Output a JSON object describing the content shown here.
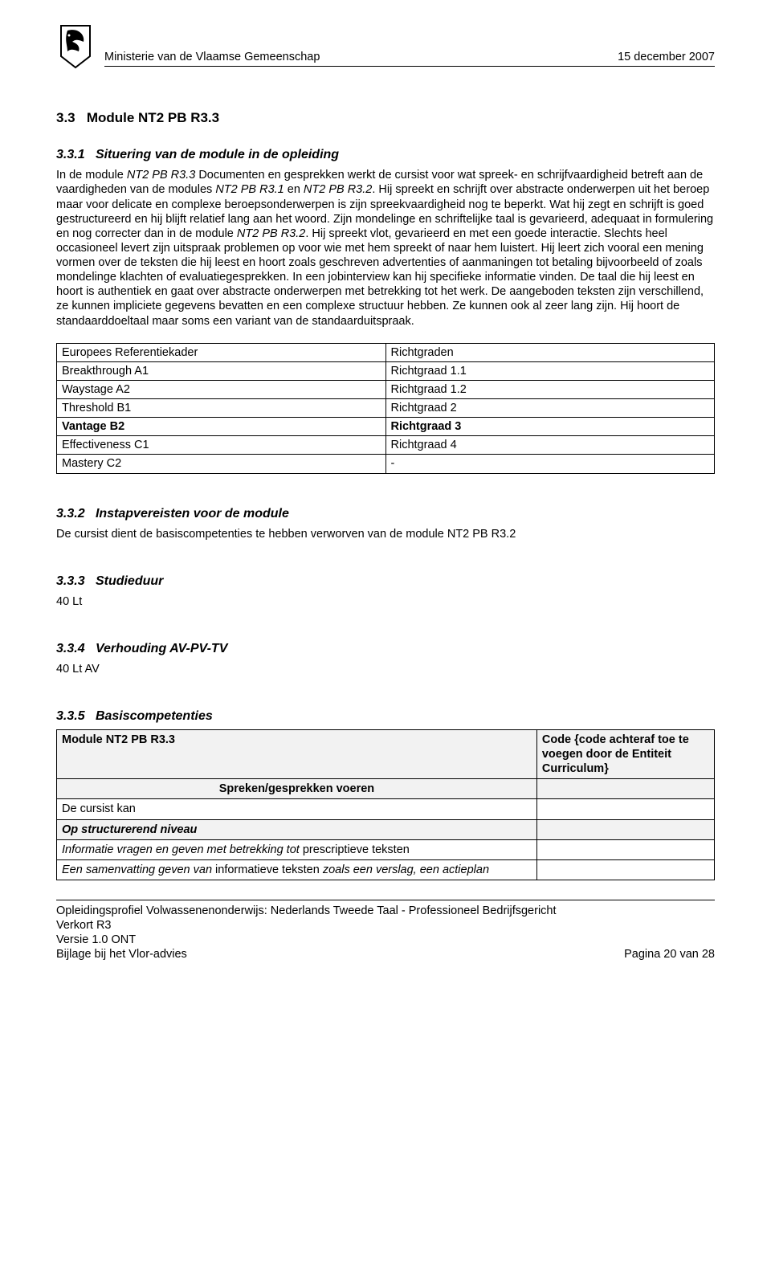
{
  "header": {
    "org": "Ministerie van de Vlaamse Gemeenschap",
    "date": "15 december 2007"
  },
  "sec33": {
    "num": "3.3",
    "title": "Module NT2 PB R3.3"
  },
  "sec331": {
    "num": "3.3.1",
    "title": "Situering van de module in de opleiding",
    "intro_prefix": "In de module ",
    "intro_i1": "NT2 PB R3.3",
    "intro_mid1": " Documenten en gesprekken werkt de cursist voor wat spreek- en schrijfvaardigheid betreft aan de vaardigheden van de modules ",
    "intro_i2": "NT2 PB R3.1",
    "intro_mid2": " en ",
    "intro_i3": "NT2 PB R3.2",
    "intro_mid3": ". Hij spreekt en schrijft over abstracte onderwerpen uit het beroep maar voor delicate en complexe beroepsonderwerpen is zijn spreekvaardigheid nog te beperkt. Wat hij zegt en schrijft is goed gestructureerd en hij blijft relatief lang aan het woord. Zijn mondelinge en schriftelijke taal is gevarieerd, adequaat in formulering en nog correcter dan in de module ",
    "intro_i4": "NT2 PB R3.2",
    "intro_tail": ". Hij spreekt vlot, gevarieerd en met een goede interactie. Slechts heel occasioneel levert zijn uitspraak problemen op voor wie met hem spreekt of naar hem luistert. Hij leert zich vooral een mening vormen over de teksten die hij leest en hoort zoals geschreven advertenties of aanmaningen tot betaling bijvoorbeeld of zoals mondelinge klachten of evaluatiegesprekken. In een jobinterview kan hij specifieke informatie vinden. De taal die hij leest en hoort is authentiek en gaat over abstracte onderwerpen met betrekking tot het werk. De aangeboden teksten zijn verschillend, ze kunnen impliciete gegevens bevatten en een complexe structuur hebben. Ze kunnen ook al zeer lang zijn. Hij hoort de standaarddoeltaal maar soms een variant van de standaarduitspraak."
  },
  "table1": {
    "rows": [
      [
        "Europees Referentiekader",
        "Richtgraden",
        false
      ],
      [
        "Breakthrough A1",
        "Richtgraad 1.1",
        false
      ],
      [
        "Waystage A2",
        "Richtgraad 1.2",
        false
      ],
      [
        "Threshold B1",
        "Richtgraad 2",
        false
      ],
      [
        "Vantage B2",
        "Richtgraad 3",
        true
      ],
      [
        "Effectiveness C1",
        "Richtgraad 4",
        false
      ],
      [
        "Mastery C2",
        "-",
        false
      ]
    ]
  },
  "sec332": {
    "num": "3.3.2",
    "title": "Instapvereisten voor de module",
    "body": "De cursist dient de basiscompetenties te hebben verworven van de module NT2 PB R3.2"
  },
  "sec333": {
    "num": "3.3.3",
    "title": "Studieduur",
    "body": "40 Lt"
  },
  "sec334": {
    "num": "3.3.4",
    "title": "Verhouding AV-PV-TV",
    "body": "40 Lt AV"
  },
  "sec335": {
    "num": "3.3.5",
    "title": "Basiscompetenties"
  },
  "comp": {
    "module": "Module NT2 PB R3.3",
    "code": "Code {code achteraf toe te voegen door de Entiteit Curriculum}",
    "spreken": "Spreken/gesprekken voeren",
    "kan": "De cursist kan",
    "struct": "Op structurerend niveau",
    "r1_i": "Informatie vragen en geven met betrekking tot ",
    "r1_t": "prescriptieve teksten",
    "r2_i": "Een samenvatting geven van ",
    "r2_t1": "informatieve teksten ",
    "r2_m": "zoals een verslag, een actieplan"
  },
  "footer": {
    "l1": "Opleidingsprofiel Volwassenenonderwijs: Nederlands Tweede Taal - Professioneel Bedrijfsgericht",
    "l2": "Verkort R3",
    "l3": "Versie 1.0 ONT",
    "l4": "Bijlage bij het Vlor-advies",
    "r4": "Pagina 20 van 28"
  }
}
